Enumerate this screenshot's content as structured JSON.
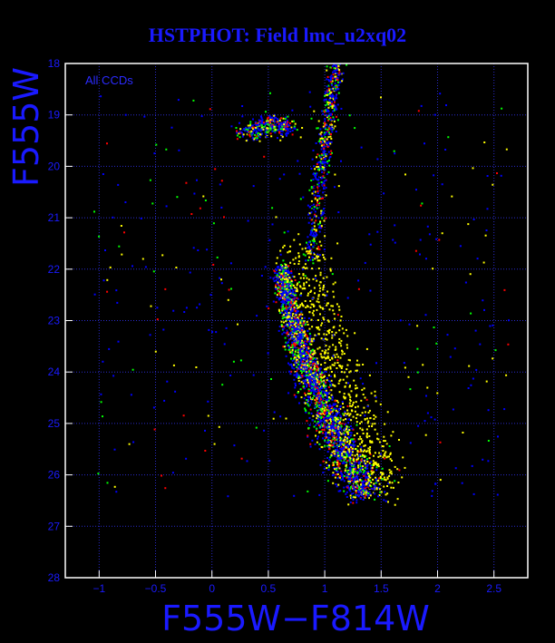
{
  "chart_data": {
    "type": "scatter",
    "title": "HSTPHOT: Field lmc_u2xq02",
    "xlabel": "F555W−F814W",
    "ylabel": "F555W",
    "xlim": [
      -1.3,
      2.8
    ],
    "ylim": [
      28,
      18
    ],
    "y_inverted": true,
    "x_ticks": [
      -1,
      -0.5,
      0,
      0.5,
      1,
      1.5,
      2,
      2.5
    ],
    "x_tick_labels": [
      "−1",
      "−0.5",
      "0",
      "0.5",
      "1",
      "1.5",
      "2",
      "2.5"
    ],
    "y_ticks": [
      18,
      19,
      20,
      21,
      22,
      23,
      24,
      25,
      26,
      27,
      28
    ],
    "y_tick_labels": [
      "18",
      "19",
      "20",
      "21",
      "22",
      "23",
      "24",
      "25",
      "26",
      "27",
      "28"
    ],
    "grid": true,
    "annotation": "All CCDs",
    "background": "#000000",
    "frame_color": "#ffffff",
    "text_color": "#1a1aff",
    "grid_color": "#2a2acc",
    "series_colors": [
      "#000000",
      "#ff0000",
      "#00ff00",
      "#ffff00",
      "#0000ff"
    ],
    "features": {
      "main_sequence": [
        [
          0.62,
          22.0
        ],
        [
          0.66,
          22.5
        ],
        [
          0.72,
          23.0
        ],
        [
          0.78,
          23.5
        ],
        [
          0.86,
          24.0
        ],
        [
          0.96,
          24.5
        ],
        [
          1.06,
          25.0
        ],
        [
          1.16,
          25.5
        ],
        [
          1.26,
          26.0
        ],
        [
          1.36,
          26.4
        ]
      ],
      "red_giant_branch": [
        [
          0.88,
          21.8
        ],
        [
          0.92,
          21.0
        ],
        [
          0.96,
          20.2
        ],
        [
          1.0,
          19.6
        ],
        [
          1.04,
          19.0
        ],
        [
          1.08,
          18.5
        ],
        [
          1.12,
          18.0
        ]
      ],
      "red_clump": [
        [
          0.3,
          19.35
        ],
        [
          0.45,
          19.25
        ],
        [
          0.55,
          19.15
        ],
        [
          0.7,
          19.3
        ]
      ]
    }
  }
}
